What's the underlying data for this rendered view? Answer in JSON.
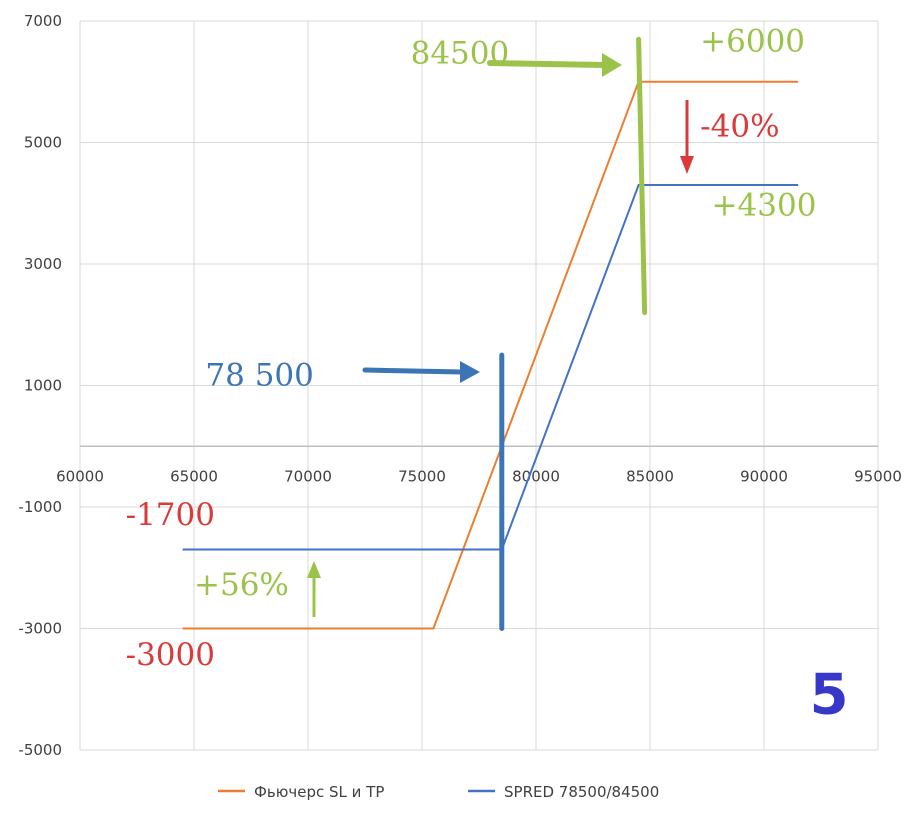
{
  "chart_data": {
    "type": "line",
    "xlim": [
      60000,
      95000
    ],
    "ylim": [
      -5000,
      7000
    ],
    "x_ticks": [
      60000,
      65000,
      70000,
      75000,
      80000,
      85000,
      90000,
      95000
    ],
    "y_ticks": [
      7000,
      5000,
      3000,
      1000,
      -1000,
      -3000,
      -5000
    ],
    "x_tick_labels": [
      "60000",
      "65000",
      "70000",
      "75000",
      "80000",
      "85000",
      "90000",
      "95000"
    ],
    "y_tick_labels": [
      "7000",
      "5000",
      "3000",
      "1000",
      "-1000",
      "-3000",
      "-5000"
    ],
    "grid": true,
    "legend_position": "bottom",
    "series": [
      {
        "name": "Фьючерс SL и TP",
        "color": "#ED7D31",
        "points": [
          [
            64500,
            -3000
          ],
          [
            75500,
            -3000
          ],
          [
            84500,
            6000
          ],
          [
            91500,
            6000
          ]
        ]
      },
      {
        "name": "SPRED 78500/84500",
        "color": "#4472C4",
        "points": [
          [
            64500,
            -1700
          ],
          [
            78500,
            -1700
          ],
          [
            84500,
            4300
          ],
          [
            91500,
            4300
          ]
        ]
      }
    ],
    "annotations": [
      {
        "id": "ann_84500",
        "text": "84500",
        "color": "#9BC34A",
        "at": [
          74500,
          6300
        ]
      },
      {
        "id": "ann_plus6000",
        "text": "+6000",
        "color": "#9BC34A",
        "at": [
          87200,
          6500
        ]
      },
      {
        "id": "ann_minus40",
        "text": "-40%",
        "color": "#D93A3A",
        "at": [
          87200,
          5100
        ]
      },
      {
        "id": "ann_plus4300",
        "text": "+4300",
        "color": "#9BC34A",
        "at": [
          87700,
          3800
        ]
      },
      {
        "id": "ann_78500",
        "text": "78 500",
        "color": "#3B75B5",
        "at": [
          65500,
          1000
        ]
      },
      {
        "id": "ann_minus1700",
        "text": "-1700",
        "color": "#D93A3A",
        "at": [
          62000,
          -1300
        ]
      },
      {
        "id": "ann_plus56",
        "text": "+56%",
        "color": "#9BC34A",
        "at": [
          65000,
          -2450
        ]
      },
      {
        "id": "ann_minus3000",
        "text": "-3000",
        "color": "#D93A3A",
        "at": [
          62000,
          -3600
        ]
      },
      {
        "id": "ann_5",
        "text": "5",
        "color": "#3838C8",
        "at": [
          92000,
          -4400
        ]
      }
    ],
    "markers": [
      {
        "id": "vline_78500",
        "x": 78500,
        "y": [
          -3000,
          1500
        ],
        "color": "#3B75B5"
      },
      {
        "id": "vline_84500",
        "x": 84500,
        "y": [
          2200,
          6700
        ],
        "color": "#9BC34A"
      }
    ]
  },
  "colors": {
    "grid": "#D9D9D9",
    "axis": "#BFBFBF",
    "tick_text": "#404040",
    "green": "#9BC34A",
    "red": "#D93A3A",
    "blue": "#3B75B5"
  }
}
